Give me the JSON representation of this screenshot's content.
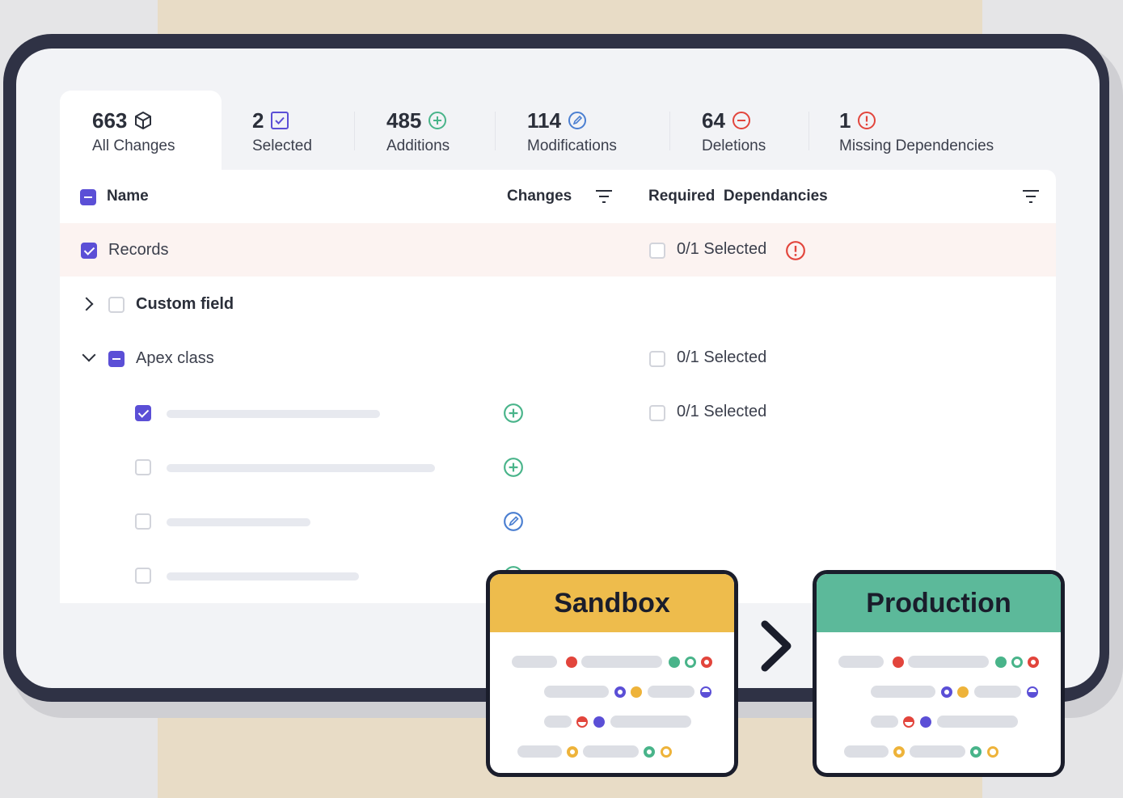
{
  "tabs": [
    {
      "count": "663",
      "label": "All Changes",
      "icon": "cube-icon",
      "active": true
    },
    {
      "count": "2",
      "label": "Selected",
      "icon": "checkbox-icon"
    },
    {
      "count": "485",
      "label": "Additions",
      "icon": "plus-circle-icon"
    },
    {
      "count": "114",
      "label": "Modifications",
      "icon": "edit-circle-icon"
    },
    {
      "count": "64",
      "label": "Deletions",
      "icon": "minus-circle-icon"
    },
    {
      "count": "1",
      "label": "Missing Dependencies",
      "icon": "alert-circle-icon"
    }
  ],
  "table": {
    "headers": {
      "name": "Name",
      "changes": "Changes",
      "required": "Required  Dependancies"
    },
    "rows": [
      {
        "name": "Records",
        "dependency": "0/1 Selected",
        "warning": true
      },
      {
        "name": "Custom field"
      },
      {
        "name": "Apex class",
        "dependency": "0/1 Selected"
      },
      {
        "dependency": "0/1 Selected",
        "change": "addition"
      },
      {
        "change": "addition"
      },
      {
        "change": "modification"
      },
      {
        "change": "addition"
      }
    ]
  },
  "environments": {
    "source": "Sandbox",
    "target": "Production"
  },
  "colors": {
    "accent": "#5b4fd6",
    "addition": "#49b48a",
    "modification": "#4b7fd1",
    "deletion": "#e2453c",
    "sandbox": "#eebc4c",
    "production": "#5cb99a"
  }
}
